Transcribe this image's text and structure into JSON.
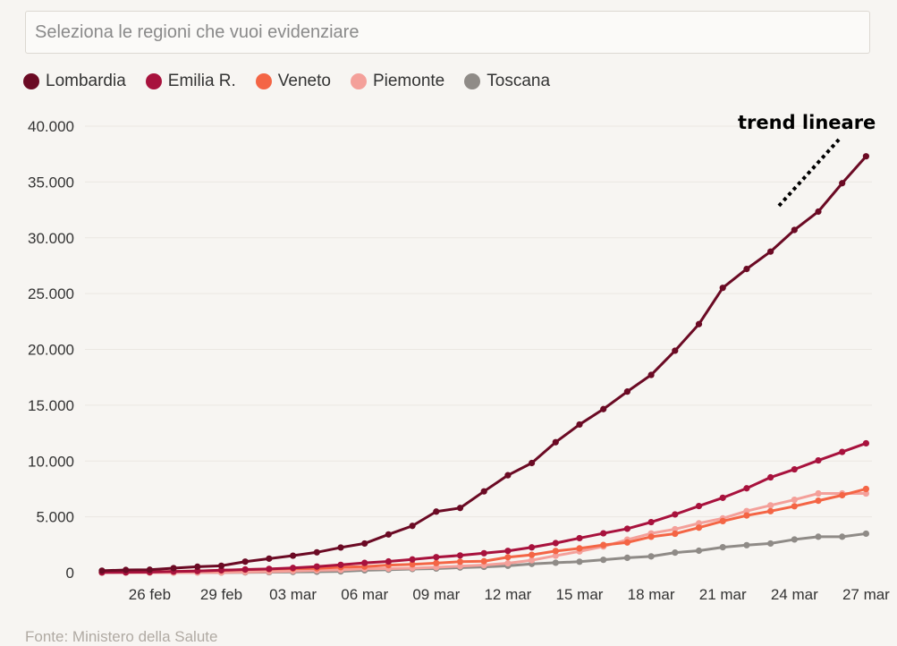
{
  "search": {
    "placeholder": "Seleziona le regioni che vuoi evidenziare"
  },
  "source": "Fonte: Ministero della Salute",
  "annotation": "trend  lineare",
  "colors": {
    "Lombardia": "#6b0a24",
    "Emilia R.": "#a8123d",
    "Veneto": "#f46545",
    "Piemonte": "#f4a09a",
    "Toscana": "#8f8b87"
  },
  "chart_data": {
    "type": "line",
    "xlabel": "",
    "ylabel": "",
    "ylim": [
      0,
      40000
    ],
    "y_ticks": [
      0,
      5000,
      10000,
      15000,
      20000,
      25000,
      30000,
      35000,
      40000
    ],
    "y_tick_labels": [
      "0",
      "5.000",
      "10.000",
      "15.000",
      "20.000",
      "25.000",
      "30.000",
      "35.000",
      "40.000"
    ],
    "x_tick_labels": [
      "26 feb",
      "29 feb",
      "03 mar",
      "06 mar",
      "09 mar",
      "12 mar",
      "15 mar",
      "18 mar",
      "21 mar",
      "24 mar",
      "27 mar"
    ],
    "grid": true,
    "legend_position": "top-left",
    "x": [
      "24 feb",
      "25 feb",
      "26 feb",
      "27 feb",
      "28 feb",
      "29 feb",
      "01 mar",
      "02 mar",
      "03 mar",
      "04 mar",
      "05 mar",
      "06 mar",
      "07 mar",
      "08 mar",
      "09 mar",
      "10 mar",
      "11 mar",
      "12 mar",
      "13 mar",
      "14 mar",
      "15 mar",
      "16 mar",
      "17 mar",
      "18 mar",
      "19 mar",
      "20 mar",
      "21 mar",
      "22 mar",
      "23 mar",
      "24 mar",
      "25 mar",
      "26 mar",
      "27 mar"
    ],
    "series": [
      {
        "name": "Lombardia",
        "values": [
          172,
          240,
          258,
          403,
          531,
          615,
          984,
          1254,
          1520,
          1820,
          2251,
          2612,
          3420,
          4189,
          5469,
          5791,
          7280,
          8725,
          9820,
          11685,
          13272,
          14649,
          16220,
          17713,
          19884,
          22264,
          25515,
          27206,
          28761,
          30703,
          32346,
          34889,
          37298
        ]
      },
      {
        "name": "Emilia R.",
        "values": [
          18,
          26,
          47,
          97,
          145,
          217,
          285,
          335,
          420,
          544,
          698,
          870,
          1000,
          1180,
          1386,
          1540,
          1739,
          1947,
          2263,
          2644,
          3093,
          3522,
          3931,
          4525,
          5214,
          5968,
          6705,
          7555,
          8535,
          9254,
          10054,
          10816,
          11588
        ]
      },
      {
        "name": "Veneto",
        "values": [
          33,
          43,
          71,
          111,
          151,
          191,
          273,
          307,
          360,
          380,
          488,
          543,
          670,
          744,
          856,
          977,
          1023,
          1384,
          1595,
          1937,
          2172,
          2473,
          2704,
          3214,
          3484,
          4031,
          4617,
          5122,
          5505,
          5948,
          6442,
          6935,
          7497
        ]
      },
      {
        "name": "Piemonte",
        "values": [
          3,
          3,
          3,
          3,
          11,
          11,
          49,
          82,
          143,
          207,
          243,
          350,
          360,
          401,
          480,
          580,
          680,
          840,
          1111,
          1516,
          1897,
          2341,
          2953,
          3514,
          3892,
          4420,
          4861,
          5515,
          6024,
          6530,
          7092,
          7092,
          7092
        ]
      },
      {
        "name": "Toscana",
        "values": [
          2,
          2,
          2,
          5,
          11,
          13,
          19,
          38,
          61,
          79,
          112,
          208,
          264,
          320,
          364,
          454,
          515,
          615,
          781,
          887,
          978,
          1148,
          1330,
          1455,
          1793,
          1964,
          2277,
          2461,
          2612,
          2972,
          3217,
          3217,
          3492
        ]
      }
    ]
  }
}
